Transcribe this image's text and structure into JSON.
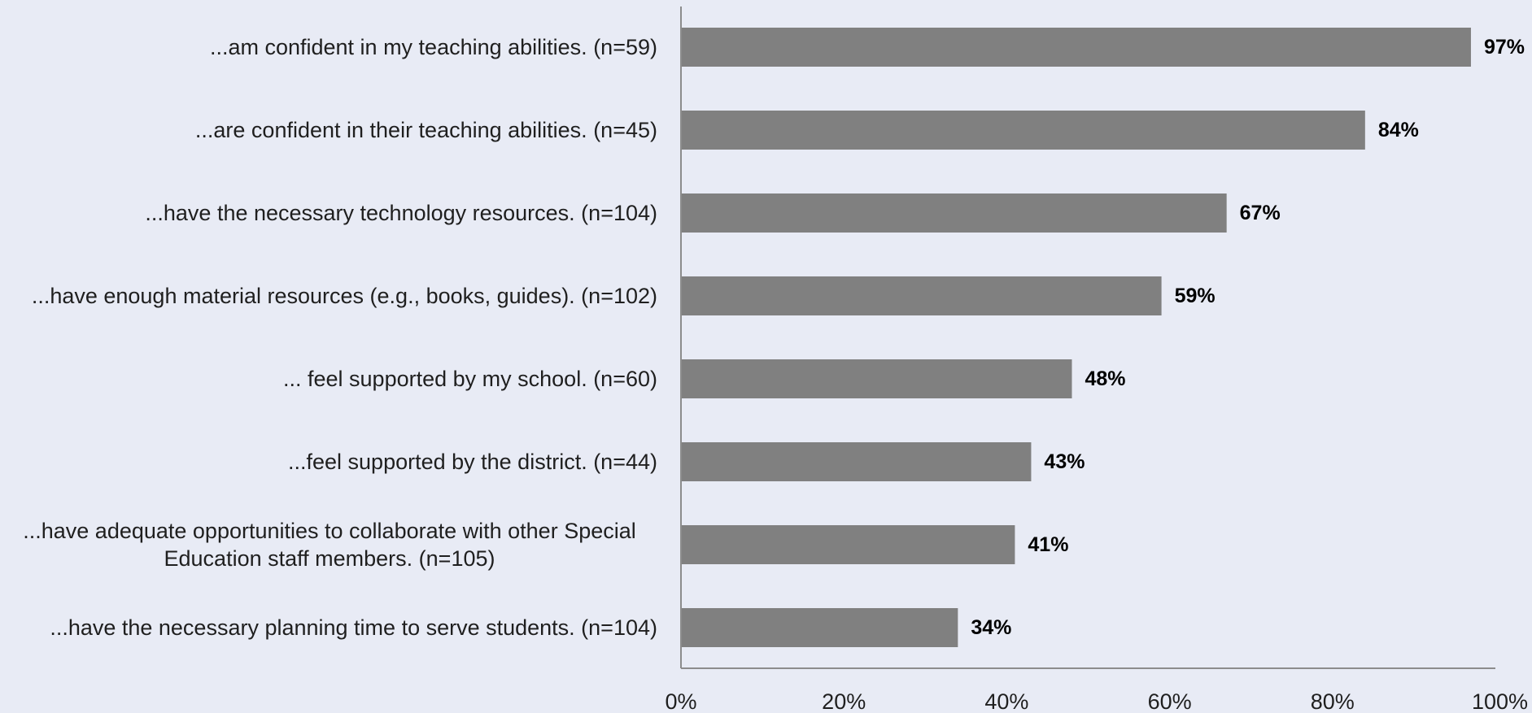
{
  "chart_data": {
    "type": "bar",
    "orientation": "horizontal",
    "categories": [
      "...am confident in my teaching abilities. (n=59)",
      "...are confident in their teaching abilities. (n=45)",
      "...have the necessary technology resources. (n=104)",
      "...have enough material resources (e.g., books, guides). (n=102)",
      "... feel supported by my school. (n=60)",
      "...feel supported by the district. (n=44)",
      "...have adequate opportunities to collaborate with other Special Education staff members. (n=105)",
      "...have the necessary planning time to serve students. (n=104)"
    ],
    "category_lines": [
      [
        "...am confident in my teaching abilities. (n=59)"
      ],
      [
        "...are confident in their teaching abilities. (n=45)"
      ],
      [
        "...have the necessary technology resources. (n=104)"
      ],
      [
        "...have enough material resources (e.g., books, guides). (n=102)"
      ],
      [
        "... feel supported by my school. (n=60)"
      ],
      [
        "...feel supported by the district. (n=44)"
      ],
      [
        "...have adequate opportunities to collaborate with other Special",
        "Education staff members. (n=105)"
      ],
      [
        "...have the necessary planning time to serve students. (n=104)"
      ]
    ],
    "values": [
      97,
      84,
      67,
      59,
      48,
      43,
      41,
      34
    ],
    "value_labels": [
      "97%",
      "84%",
      "67%",
      "59%",
      "48%",
      "43%",
      "41%",
      "34%"
    ],
    "xlim": [
      0,
      100
    ],
    "x_ticks": [
      0,
      20,
      40,
      60,
      80,
      100
    ],
    "x_tick_labels": [
      "0%",
      "20%",
      "40%",
      "60%",
      "80%",
      "100%"
    ],
    "title": "",
    "xlabel": "",
    "ylabel": "",
    "grid": false,
    "legend": "none",
    "colors": {
      "bar": "#808080",
      "axis": "#8c8c8c",
      "background": "#e8ebf5"
    }
  }
}
